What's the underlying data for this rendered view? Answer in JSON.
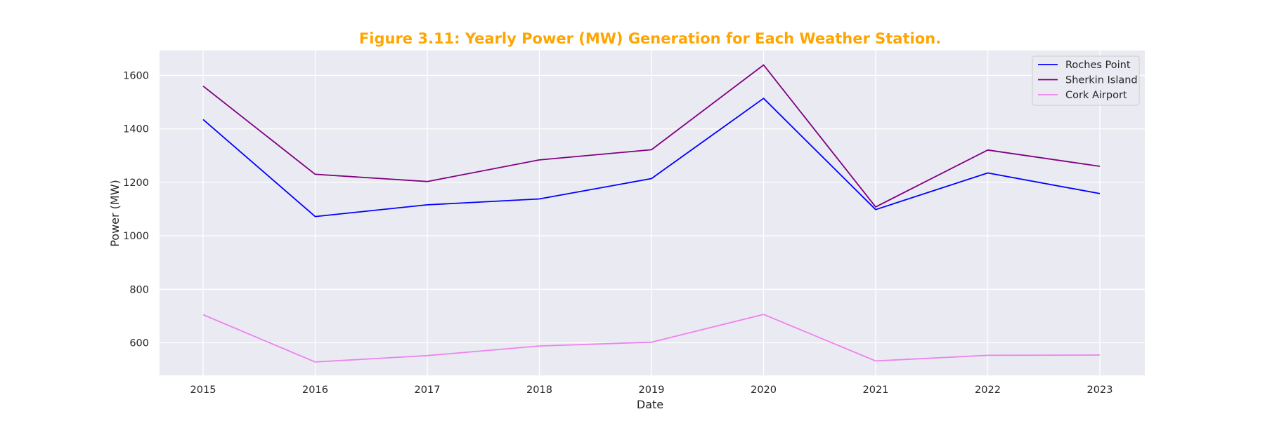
{
  "chart_data": {
    "type": "line",
    "title": "Figure 3.11: Yearly Power (MW) Generation for Each Weather Station.",
    "title_color": "#FFA500",
    "xlabel": "Date",
    "ylabel": "Power (MW)",
    "x": [
      "2015",
      "2016",
      "2017",
      "2018",
      "2019",
      "2020",
      "2021",
      "2022",
      "2023"
    ],
    "yticks": [
      600,
      800,
      1000,
      1200,
      1400,
      1600
    ],
    "ylim": [
      478,
      1693
    ],
    "grid": true,
    "background": "#EAEAF2",
    "legend_position": "top-right",
    "series": [
      {
        "name": "Roches Point",
        "color": "#0000FF",
        "values": [
          1435,
          1072,
          1116,
          1138,
          1214,
          1514,
          1098,
          1235,
          1158
        ]
      },
      {
        "name": "Sherkin Island",
        "color": "#800080",
        "values": [
          1560,
          1230,
          1203,
          1284,
          1322,
          1639,
          1108,
          1321,
          1260
        ]
      },
      {
        "name": "Cork Airport",
        "color": "#EE82EE",
        "values": [
          705,
          528,
          552,
          588,
          602,
          706,
          532,
          553,
          554
        ]
      }
    ]
  }
}
